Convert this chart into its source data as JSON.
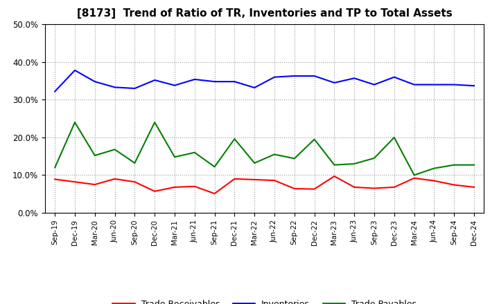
{
  "title": "[8173]  Trend of Ratio of TR, Inventories and TP to Total Assets",
  "x_labels": [
    "Sep-19",
    "Dec-19",
    "Mar-20",
    "Jun-20",
    "Sep-20",
    "Dec-20",
    "Mar-21",
    "Jun-21",
    "Sep-21",
    "Dec-21",
    "Mar-22",
    "Jun-22",
    "Sep-22",
    "Dec-22",
    "Mar-23",
    "Jun-23",
    "Sep-23",
    "Dec-23",
    "Mar-24",
    "Jun-24",
    "Sep-24",
    "Dec-24"
  ],
  "trade_receivables": [
    0.089,
    0.082,
    0.075,
    0.09,
    0.082,
    0.057,
    0.068,
    0.07,
    0.051,
    0.09,
    0.088,
    0.086,
    0.064,
    0.063,
    0.097,
    0.068,
    0.065,
    0.068,
    0.092,
    0.085,
    0.074,
    0.068
  ],
  "inventories": [
    0.322,
    0.378,
    0.348,
    0.333,
    0.33,
    0.352,
    0.338,
    0.354,
    0.348,
    0.348,
    0.332,
    0.36,
    0.363,
    0.363,
    0.345,
    0.357,
    0.34,
    0.36,
    0.34,
    0.34,
    0.34,
    0.337
  ],
  "trade_payables": [
    0.12,
    0.24,
    0.152,
    0.168,
    0.132,
    0.24,
    0.148,
    0.16,
    0.122,
    0.196,
    0.132,
    0.155,
    0.144,
    0.195,
    0.127,
    0.13,
    0.145,
    0.2,
    0.1,
    0.118,
    0.127,
    0.127
  ],
  "ylim": [
    0.0,
    0.5
  ],
  "yticks": [
    0.0,
    0.1,
    0.2,
    0.3,
    0.4,
    0.5
  ],
  "line_colors": {
    "trade_receivables": "#ff0000",
    "inventories": "#0000ff",
    "trade_payables": "#008000"
  },
  "legend_labels": [
    "Trade Receivables",
    "Inventories",
    "Trade Payables"
  ],
  "background_color": "#ffffff",
  "grid_color": "#999999"
}
